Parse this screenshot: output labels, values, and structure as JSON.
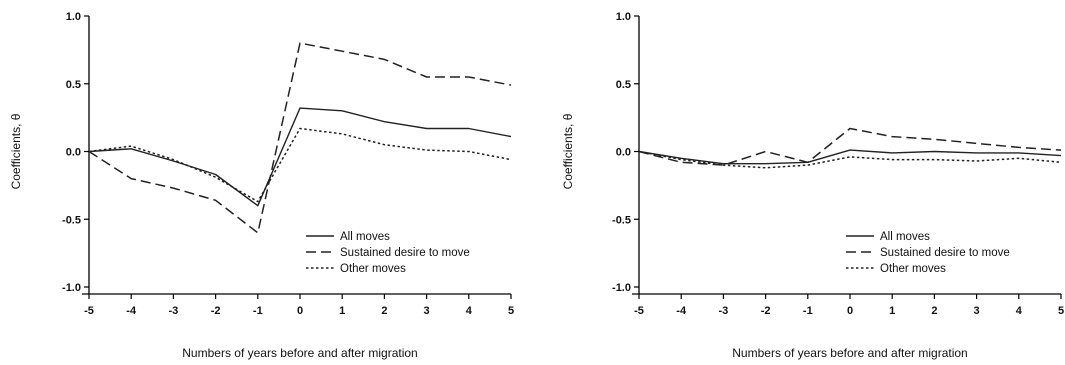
{
  "chart_data": [
    {
      "type": "line",
      "xlabel": "Numbers of years before and after migration",
      "ylabel": "Coefficients, θ",
      "x": [
        -5,
        -4,
        -3,
        -2,
        -1,
        0,
        1,
        2,
        3,
        4,
        5
      ],
      "xlim": [
        -5,
        5
      ],
      "ylim": [
        -1.0,
        1.0
      ],
      "yticks": [
        "1.0",
        "0.5",
        "0.0",
        "-0.5",
        "-1.0"
      ],
      "legend_position": "lower-right",
      "grid": false,
      "series": [
        {
          "name": "All moves",
          "style": "solid",
          "values": [
            0.0,
            0.02,
            -0.07,
            -0.17,
            -0.4,
            0.32,
            0.3,
            0.22,
            0.17,
            0.17,
            0.11
          ]
        },
        {
          "name": "Sustained desire to move",
          "style": "dashed",
          "values": [
            0.0,
            -0.2,
            -0.27,
            -0.36,
            -0.6,
            0.8,
            0.74,
            0.68,
            0.55,
            0.55,
            0.49
          ]
        },
        {
          "name": "Other moves",
          "style": "dotted",
          "values": [
            0.0,
            0.04,
            -0.06,
            -0.19,
            -0.37,
            0.17,
            0.13,
            0.05,
            0.01,
            0.0,
            -0.06
          ]
        }
      ]
    },
    {
      "type": "line",
      "xlabel": "Numbers of years before and after migration",
      "ylabel": "Coefficients, θ",
      "x": [
        -5,
        -4,
        -3,
        -2,
        -1,
        0,
        1,
        2,
        3,
        4,
        5
      ],
      "xlim": [
        -5,
        5
      ],
      "ylim": [
        -1.0,
        1.0
      ],
      "yticks": [
        "1.0",
        "0.5",
        "0.0",
        "-0.5",
        "-1.0"
      ],
      "legend_position": "lower-right",
      "grid": false,
      "series": [
        {
          "name": "All moves",
          "style": "solid",
          "values": [
            0.0,
            -0.05,
            -0.09,
            -0.09,
            -0.08,
            0.01,
            -0.01,
            0.0,
            -0.01,
            -0.01,
            -0.03
          ]
        },
        {
          "name": "Sustained desire to move",
          "style": "dashed",
          "values": [
            0.0,
            -0.08,
            -0.1,
            0.0,
            -0.08,
            0.17,
            0.11,
            0.09,
            0.06,
            0.03,
            0.01
          ]
        },
        {
          "name": "Other moves",
          "style": "dotted",
          "values": [
            0.0,
            -0.06,
            -0.1,
            -0.12,
            -0.1,
            -0.04,
            -0.06,
            -0.06,
            -0.07,
            -0.05,
            -0.08
          ]
        }
      ]
    }
  ]
}
